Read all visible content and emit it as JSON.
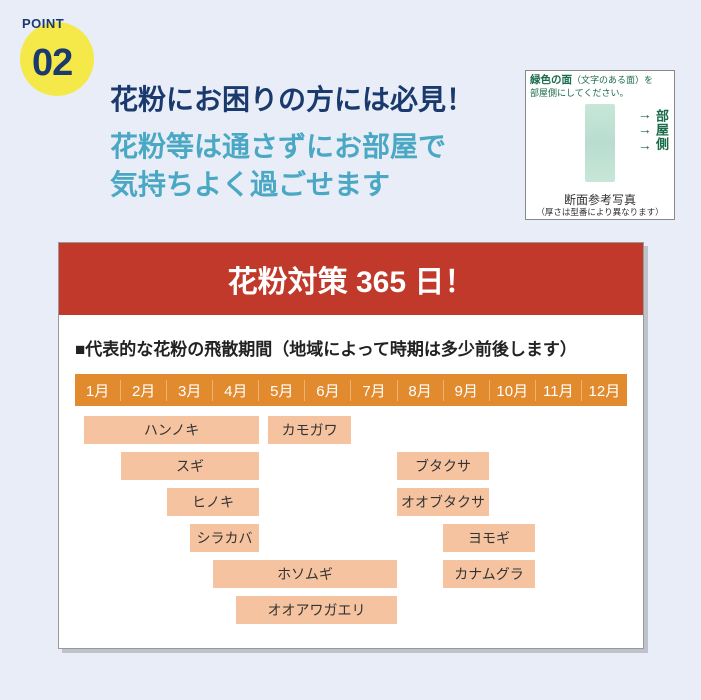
{
  "badge": {
    "label": "POINT",
    "number": "02"
  },
  "heading1": "花粉にお困りの方には必見！",
  "heading2a": "花粉等は通さずにお部屋で",
  "heading2b": "気持ちよく過ごせます",
  "photo": {
    "top_a": "緑色の面",
    "top_b": "（文字のある面）を",
    "top_c": "部屋側にしてください。",
    "side": "部屋側",
    "caption": "断面参考写真",
    "caption_sm": "（厚さは型番により異なります）"
  },
  "card_title": "花粉対策 365 日！",
  "subhead": "■代表的な花粉の飛散期間（地域によって時期は多少前後します）",
  "months": [
    "1月",
    "2月",
    "3月",
    "4月",
    "5月",
    "6月",
    "7月",
    "8月",
    "9月",
    "10月",
    "11月",
    "12月"
  ],
  "rows": [
    {
      "bars": [
        {
          "label": "ハンノキ",
          "start": 1.2,
          "end": 5.0
        },
        {
          "label": "カモガワ",
          "start": 5.2,
          "end": 7.0
        }
      ]
    },
    {
      "bars": [
        {
          "label": "スギ",
          "start": 2.0,
          "end": 5.0
        },
        {
          "label": "ブタクサ",
          "start": 8.0,
          "end": 10.0
        }
      ]
    },
    {
      "bars": [
        {
          "label": "ヒノキ",
          "start": 3.0,
          "end": 5.0
        },
        {
          "label": "オオブタクサ",
          "start": 8.0,
          "end": 10.0
        }
      ]
    },
    {
      "bars": [
        {
          "label": "シラカバ",
          "start": 3.5,
          "end": 5.0
        },
        {
          "label": "ヨモギ",
          "start": 9.0,
          "end": 11.0
        }
      ]
    },
    {
      "bars": [
        {
          "label": "ホソムギ",
          "start": 4.0,
          "end": 8.0
        },
        {
          "label": "カナムグラ",
          "start": 9.0,
          "end": 11.0
        }
      ]
    },
    {
      "bars": [
        {
          "label": "オオアワガエリ",
          "start": 4.5,
          "end": 8.0
        }
      ]
    }
  ],
  "colors": {
    "card_title_bg": "#c0392b",
    "months_bg": "#e28a2e",
    "bar_fill": "#f5c3a0",
    "heading_navy": "#1a3a6e",
    "heading_teal": "#4aa8c4",
    "page_bg": "#e8edf7",
    "badge_yellow": "#f5e94a"
  },
  "month_unit_start": 1,
  "month_unit_end": 13,
  "chart_type": "gantt"
}
